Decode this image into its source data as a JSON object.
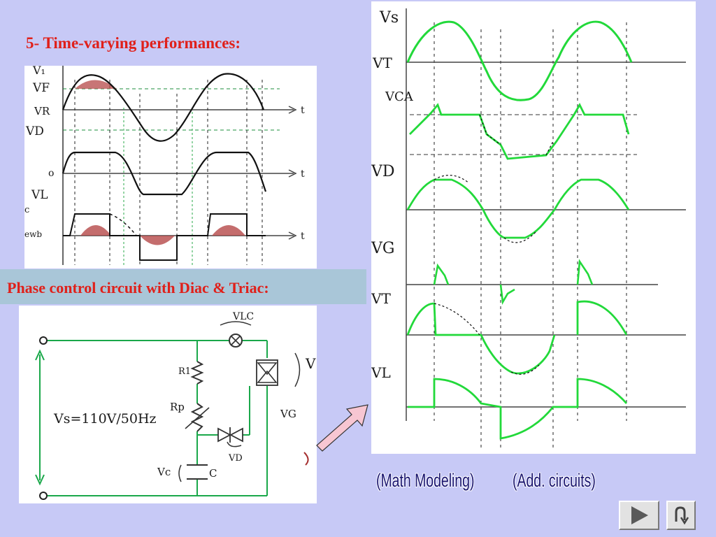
{
  "slide": {
    "title": "5-   Time-varying performances:",
    "banner": "Phase control circuit with Diac & Triac:",
    "links": {
      "math": "(Math Modeling)",
      "add": "(Add. circuits)"
    }
  },
  "top_panel_labels": {
    "v1": "V₁",
    "vf": "VF",
    "vr": "VR",
    "vd": "VD",
    "zero": "o",
    "vl": "VL",
    "t1": "t",
    "t2": "t",
    "t3": "t",
    "cut1": "c",
    "cut2": "ewb"
  },
  "circuit_labels": {
    "vs": "Vs=110V/50Hz",
    "vlc": "VLC",
    "r1": "R1",
    "rp": "Rp",
    "c": "C",
    "vc": "Vc",
    "vd": "VD",
    "vg": "VG",
    "v": "V"
  },
  "right_panel_labels": [
    "Vs",
    "VT",
    "VCA",
    "VD",
    "VG",
    "VT",
    "VL"
  ],
  "colors": {
    "title_red": "#e0201a",
    "banner_bg": "#a9c6d8",
    "link_blue": "#1a1570",
    "wave_green": "#22d93a",
    "page_bg": "#c7c9f6",
    "arrow_fill": "#f7c6d2"
  },
  "icons": {
    "next": "play-triangle-icon",
    "return": "u-turn-return-icon"
  }
}
